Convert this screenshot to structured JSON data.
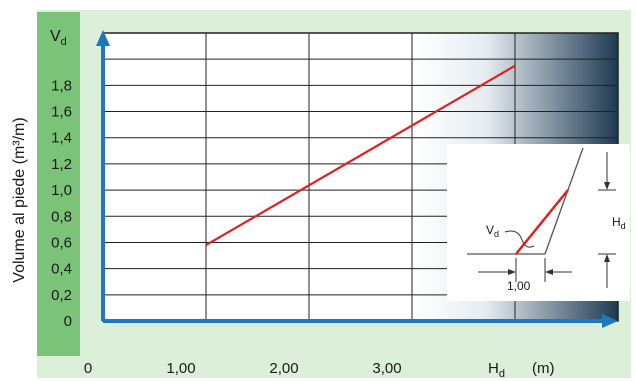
{
  "chart_data": {
    "type": "line",
    "ylabel": "Volume al piede (m³/m)",
    "y_axis_symbol": "V",
    "y_axis_symbol_sub": "d",
    "x_axis_symbol": "H",
    "x_axis_symbol_sub": "d",
    "x_unit": "(m)",
    "x_ticks": [
      "0",
      "1,00",
      "2,00",
      "3,00"
    ],
    "y_ticks": [
      "0",
      "0,2",
      "0,4",
      "0,6",
      "0,8",
      "1,0",
      "1,2",
      "1,4",
      "1,6",
      "1,8"
    ],
    "xlim": [
      0,
      5
    ],
    "ylim": [
      0,
      2.2
    ],
    "grid": true,
    "series": [
      {
        "values": [
          {
            "x": 1.0,
            "y": 0.58
          },
          {
            "x": 4.0,
            "y": 1.95
          }
        ]
      }
    ],
    "colors": {
      "line": "#e02020",
      "axis": "#1e78c0",
      "panel": "#dcefd8",
      "y_band": "#7cc37a",
      "grid": "#222222"
    },
    "inset": {
      "vd_label": "V",
      "vd_sub": "d",
      "hd_label": "H",
      "hd_sub": "d",
      "base_label": "1,00"
    }
  }
}
